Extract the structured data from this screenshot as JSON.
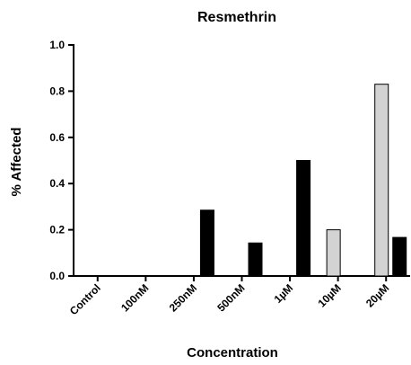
{
  "chart_data": {
    "type": "bar",
    "title": "Resmethrin",
    "xlabel": "Concentration",
    "ylabel": "% Affected",
    "ylim": [
      0,
      1.0
    ],
    "yticks": [
      "0.0",
      "0.2",
      "0.4",
      "0.6",
      "0.8",
      "1.0"
    ],
    "categories": [
      "Control",
      "100nM",
      "250nM",
      "500nM",
      "1µM",
      "10µM",
      "20µM"
    ],
    "series": [
      {
        "color": "#d3d3d3",
        "values": [
          0,
          0,
          0,
          0,
          0,
          0.2,
          0.83
        ]
      },
      {
        "color": "#000000",
        "values": [
          0,
          0,
          0.285,
          0.143,
          0.5,
          0,
          0.167
        ]
      }
    ],
    "grid": false,
    "legend": "none"
  }
}
